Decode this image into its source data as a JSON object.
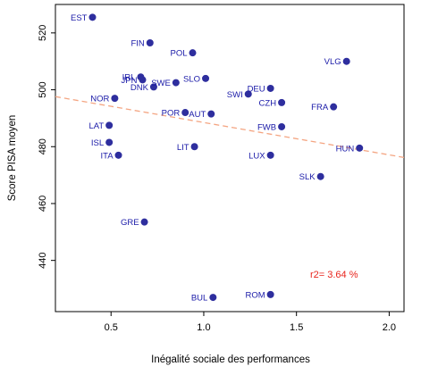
{
  "chart_data": {
    "type": "scatter",
    "xlabel": "Inégalité sociale des performances",
    "ylabel": "Score PISA moyen",
    "xlim": [
      0.2,
      2.08
    ],
    "ylim": [
      422,
      530
    ],
    "xticks": [
      0.5,
      1.0,
      1.5,
      2.0
    ],
    "xtick_labels": [
      "0.5",
      "1.0",
      "1.5",
      "2.0"
    ],
    "yticks": [
      440,
      460,
      480,
      500,
      520
    ],
    "ytick_labels": [
      "440",
      "460",
      "480",
      "500",
      "520"
    ],
    "grid": false,
    "trend": {
      "x": [
        0.2,
        2.08
      ],
      "y": [
        497.6,
        476.2
      ]
    },
    "annotation": "r2= 3.64 %",
    "points": [
      {
        "label": "EST",
        "x": 0.4,
        "y": 525.5
      },
      {
        "label": "FIN",
        "x": 0.71,
        "y": 516.5
      },
      {
        "label": "POL",
        "x": 0.94,
        "y": 513.0
      },
      {
        "label": "VLG",
        "x": 1.77,
        "y": 510.0
      },
      {
        "label": "IRL",
        "x": 0.66,
        "y": 504.5
      },
      {
        "label": "JPN",
        "x": 0.67,
        "y": 503.5
      },
      {
        "label": "SWE",
        "x": 0.85,
        "y": 502.5
      },
      {
        "label": "DNK",
        "x": 0.73,
        "y": 501.0
      },
      {
        "label": "SLO",
        "x": 1.01,
        "y": 504.0
      },
      {
        "label": "DEU",
        "x": 1.36,
        "y": 500.5
      },
      {
        "label": "SWI",
        "x": 1.24,
        "y": 498.5
      },
      {
        "label": "CZH",
        "x": 1.42,
        "y": 495.5
      },
      {
        "label": "NOR",
        "x": 0.52,
        "y": 497.0
      },
      {
        "label": "FRA",
        "x": 1.7,
        "y": 494.0
      },
      {
        "label": "POR",
        "x": 0.9,
        "y": 492.0
      },
      {
        "label": "AUT",
        "x": 1.04,
        "y": 491.5
      },
      {
        "label": "LAT",
        "x": 0.49,
        "y": 487.5
      },
      {
        "label": "FWB",
        "x": 1.42,
        "y": 487.0
      },
      {
        "label": "ISL",
        "x": 0.49,
        "y": 481.5
      },
      {
        "label": "LIT",
        "x": 0.95,
        "y": 480.0
      },
      {
        "label": "HUN",
        "x": 1.84,
        "y": 479.5
      },
      {
        "label": "ITA",
        "x": 0.54,
        "y": 477.0
      },
      {
        "label": "LUX",
        "x": 1.36,
        "y": 477.0
      },
      {
        "label": "SLK",
        "x": 1.63,
        "y": 469.5
      },
      {
        "label": "GRE",
        "x": 0.68,
        "y": 453.5
      },
      {
        "label": "ROM",
        "x": 1.36,
        "y": 428.0
      },
      {
        "label": "BUL",
        "x": 1.05,
        "y": 427.0
      }
    ]
  }
}
